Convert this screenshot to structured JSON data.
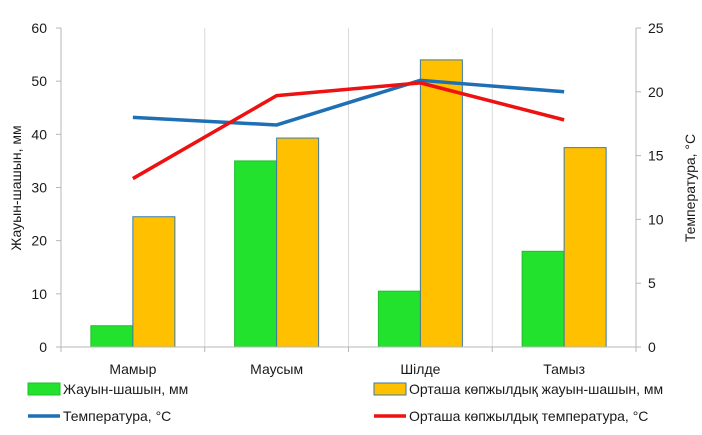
{
  "chart_data": {
    "type": "bar",
    "categories": [
      "Мамыр",
      "Маусым",
      "Шілде",
      "Тамыз"
    ],
    "series": [
      {
        "name": "Жауын-шашын, мм",
        "kind": "bar",
        "axis": "left",
        "color": "#22e22e",
        "values": [
          4,
          35,
          10.5,
          18
        ]
      },
      {
        "name": "Орташа көпжылдық жауын-шашын, мм",
        "kind": "bar",
        "axis": "left",
        "color": "#ffc000",
        "values": [
          24.5,
          39.3,
          54,
          37.5
        ]
      },
      {
        "name": "Температура, °C",
        "kind": "line",
        "axis": "right",
        "color": "#1f6fb5",
        "values": [
          18,
          17.4,
          20.9,
          20
        ]
      },
      {
        "name": "Орташа көпжылдық температура, °C",
        "kind": "line",
        "axis": "right",
        "color": "#ee1111",
        "values": [
          13.2,
          19.7,
          20.7,
          17.8
        ]
      }
    ],
    "ylabel": "Жауын-шашын, мм",
    "ylim": [
      0,
      60
    ],
    "yticks": [
      0,
      10,
      20,
      30,
      40,
      50,
      60
    ],
    "y2label": "Температура, °C",
    "y2lim": [
      0,
      25
    ],
    "y2ticks": [
      0,
      5,
      10,
      15,
      20,
      25
    ],
    "grid": "vertical-category-separators",
    "legend_position": "bottom"
  }
}
